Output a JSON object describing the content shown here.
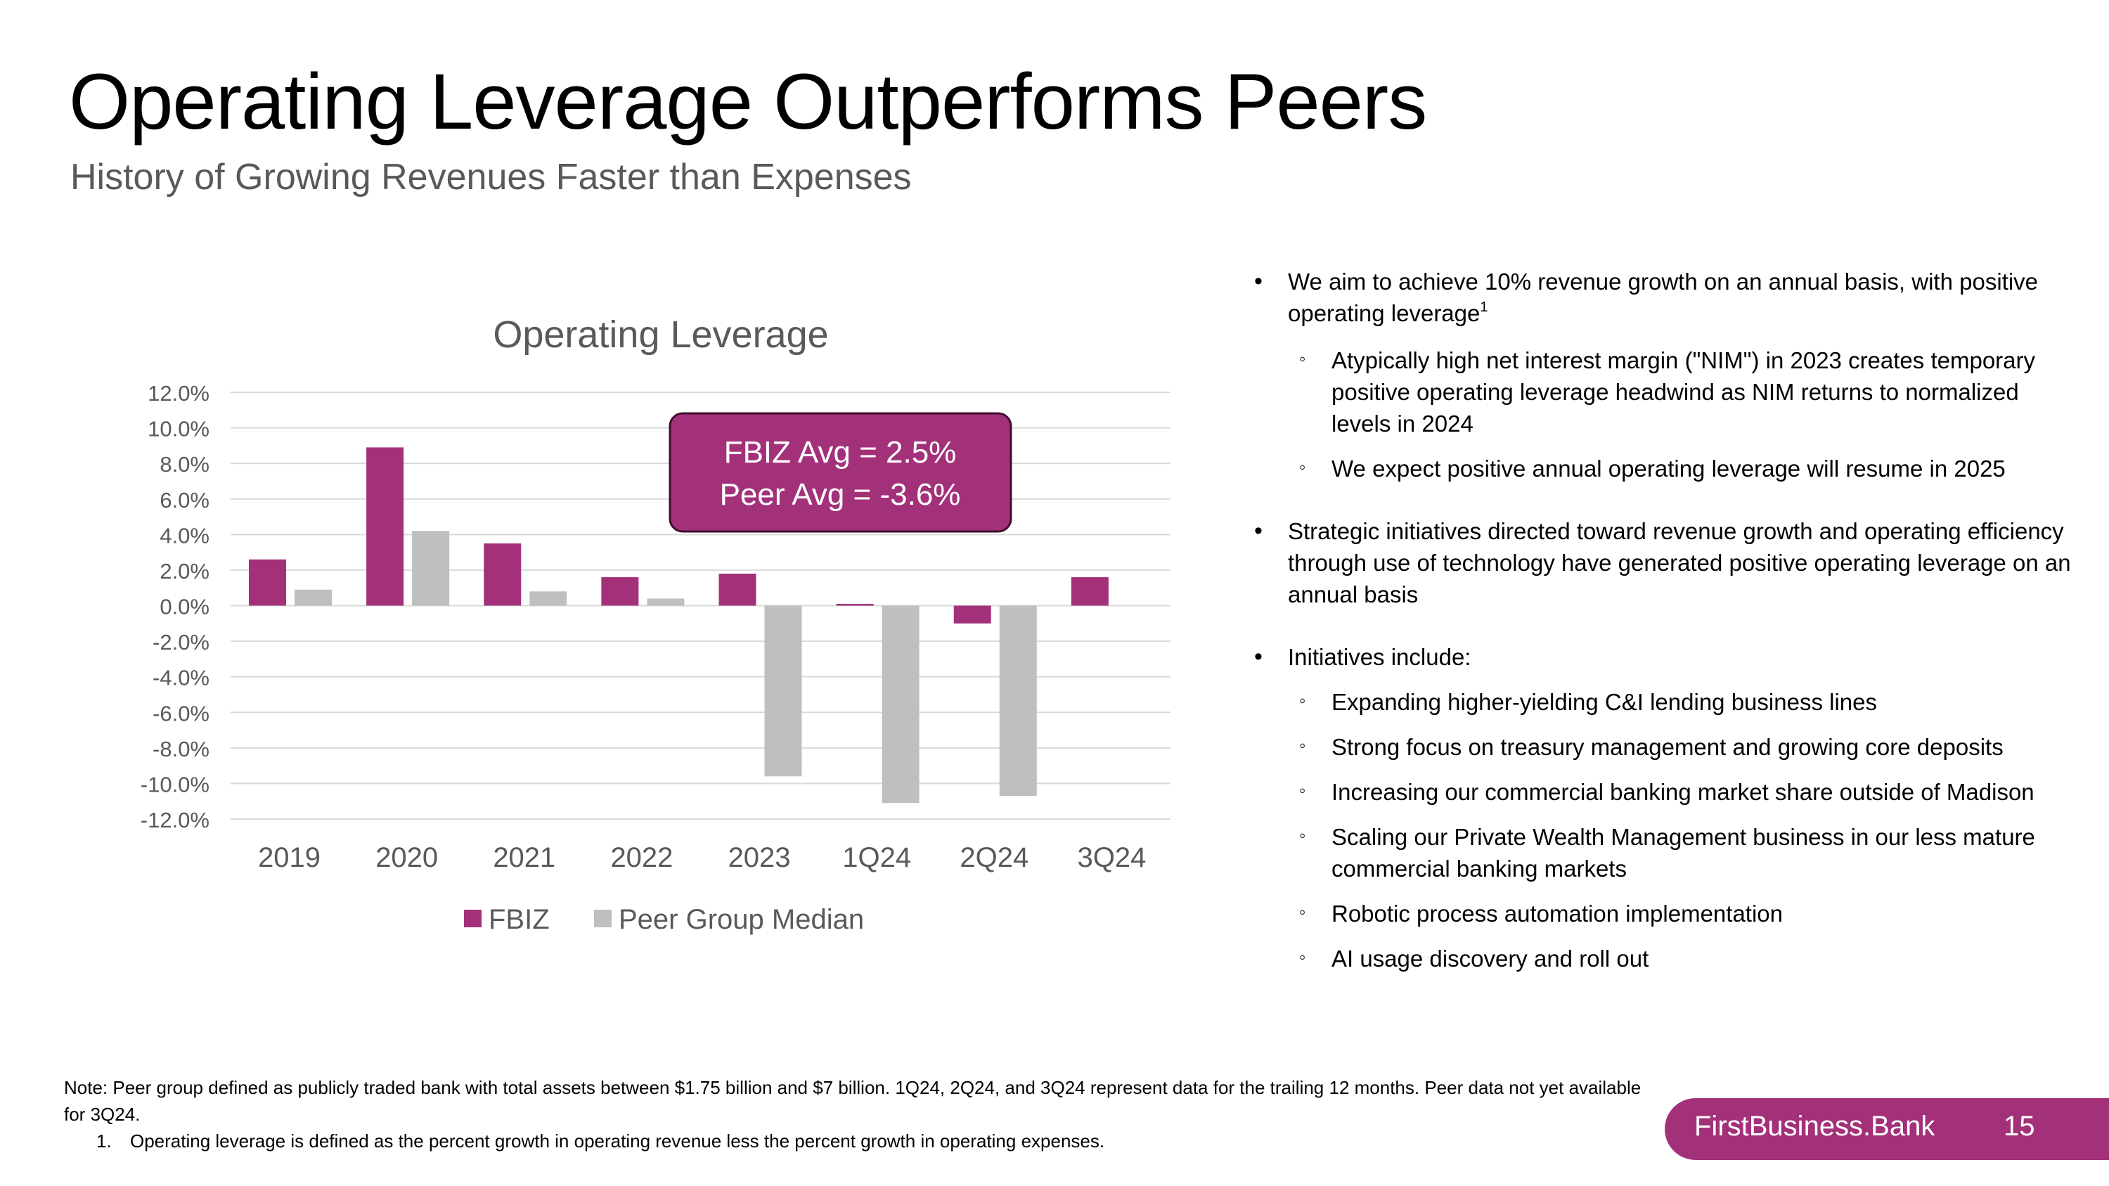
{
  "slide": {
    "title": "Operating Leverage Outperforms Peers",
    "subtitle": "History of Growing Revenues Faster than Expenses"
  },
  "chart_data": {
    "type": "bar",
    "title": "Operating Leverage",
    "categories": [
      "2019",
      "2020",
      "2021",
      "2022",
      "2023",
      "1Q24",
      "2Q24",
      "3Q24"
    ],
    "series": [
      {
        "name": "FBIZ",
        "color": "#a3317a",
        "values": [
          2.6,
          8.9,
          3.5,
          1.6,
          1.8,
          0.1,
          -1.0,
          1.6
        ]
      },
      {
        "name": "Peer Group Median",
        "color": "#bfbfbf",
        "values": [
          0.9,
          4.2,
          0.8,
          0.4,
          -9.6,
          -11.1,
          -10.7,
          null
        ]
      }
    ],
    "ylim": [
      -12,
      12
    ],
    "ytick_step": 2,
    "ytick_labels": [
      "12.0%",
      "10.0%",
      "8.0%",
      "6.0%",
      "4.0%",
      "2.0%",
      "0.0%",
      "-2.0%",
      "-4.0%",
      "-6.0%",
      "-8.0%",
      "-10.0%",
      "-12.0%"
    ],
    "grid": true,
    "legend": "bottom",
    "xlabel": "",
    "ylabel": "",
    "annotation": {
      "line1": "FBIZ Avg = 2.5%",
      "line2": "Peer Avg = -3.6%",
      "fill": "#a3317a"
    }
  },
  "bullets": {
    "b1": "We aim to achieve 10% revenue growth on an annual basis, with positive operating leverage",
    "b1_sup": "1",
    "b1_sub1": "Atypically high net interest margin (\"NIM\") in 2023 creates temporary positive operating leverage headwind as NIM returns to normalized levels in 2024",
    "b1_sub2": "We expect positive annual operating leverage will resume in 2025",
    "b2": "Strategic initiatives directed toward revenue growth and operating efficiency through use of technology have generated positive operating leverage on an annual basis",
    "b3": "Initiatives include:",
    "b3_subs": [
      "Expanding higher-yielding C&I lending business lines",
      "Strong focus on treasury management and growing core deposits",
      "Increasing our commercial banking market share outside of Madison",
      "Scaling our Private Wealth Management business in our less mature commercial banking markets",
      "Robotic process automation implementation",
      "AI usage discovery and roll out"
    ]
  },
  "footer": {
    "note": "Note: Peer group defined as publicly traded bank with total assets between $1.75 billion and $7 billion. 1Q24, 2Q24, and 3Q24 represent data for the trailing 12 months. Peer data not yet available for 3Q24.",
    "footnote_number": "1.",
    "footnote_text": "Operating leverage is defined as the percent growth in operating revenue less the percent growth in operating expenses.",
    "brand": "FirstBusiness.Bank",
    "page_number": "15"
  }
}
